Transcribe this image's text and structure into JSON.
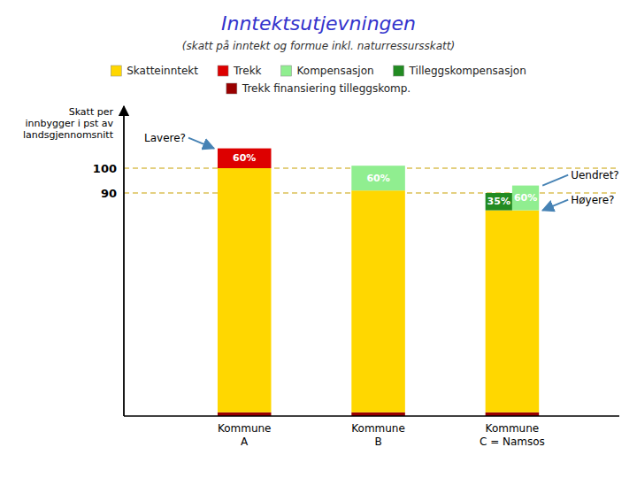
{
  "chart_data": {
    "type": "bar",
    "stacked": true,
    "title": "Inntektsutjevningen",
    "subtitle": "(skatt på inntekt og formue inkl. naturressursskatt)",
    "y_label": "Skatt per\ninnbygger i pst av\nlandsgjennomsnitt",
    "categories": [
      "Kommune\nA",
      "Kommune\nB",
      "Kommune\nC = Namsos"
    ],
    "series": [
      {
        "name": "Skatteinntekt",
        "color": "#FFD700",
        "values": [
          98.5,
          89.5,
          81.5
        ]
      },
      {
        "name": "Trekk",
        "color": "#DD0000",
        "values": [
          8.0,
          null,
          null
        ]
      },
      {
        "name": "Kompensasjon",
        "color": "#90EE90",
        "values": [
          null,
          10.0,
          10.0
        ]
      },
      {
        "name": "Tilleggskompensasjon",
        "color": "#228B22",
        "values": [
          null,
          null,
          7.0
        ]
      },
      {
        "name": "Trekk finansiering tilleggskomp.",
        "color": "#990000",
        "values": [
          1.5,
          1.5,
          1.5
        ]
      }
    ],
    "ylim": [
      0,
      125
    ],
    "yticks": [
      90,
      100
    ],
    "grid": true,
    "legend": "top",
    "annotations": [
      {
        "text": "60%",
        "category": "Kommune\nA",
        "series": "Trekk",
        "position": "inside"
      },
      {
        "text": "60%",
        "category": "Kommune\nB",
        "series": "Kompensasjon",
        "position": "inside"
      },
      {
        "text": "35%",
        "category": "Kommune\nC = Namsos",
        "series": "Tilleggskompensasjon",
        "position": "inside"
      },
      {
        "text": "60%",
        "category": "Kommune\nC = Namsos",
        "series": "Kompensasjon",
        "position": "inside"
      },
      {
        "text": "Lavere?",
        "category": "Kommune\nA",
        "series": "Trekk",
        "position": "left",
        "arrow": true
      },
      {
        "text": "Uendret?",
        "category": "Kommune\nC = Namsos",
        "series": "Kompensasjon",
        "position": "right",
        "arrow": false
      },
      {
        "text": "Høyere?",
        "category": "Kommune\nC = Namsos",
        "series": "Skatteinntekt",
        "position": "right",
        "arrow": true
      }
    ]
  }
}
